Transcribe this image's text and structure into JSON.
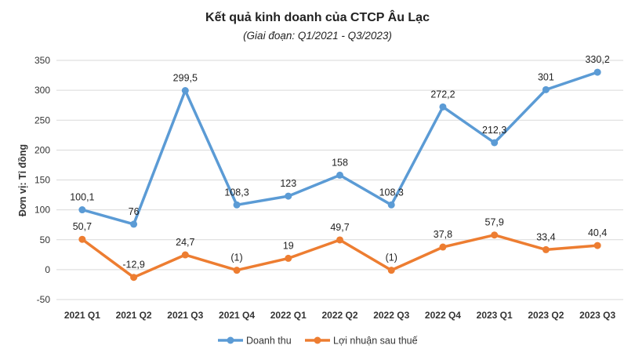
{
  "chart_data": {
    "type": "line",
    "title": "Kết quả kinh doanh của CTCP Âu Lạc",
    "subtitle": "(Giai đoạn: Q1/2021 - Q3/2023)",
    "ylabel": "Đơn vị: Tỉ đồng",
    "ylim": [
      -50,
      350
    ],
    "yticks": [
      -50,
      0,
      50,
      100,
      150,
      200,
      250,
      300,
      350
    ],
    "grid": true,
    "legend_position": "bottom",
    "categories": [
      "2021 Q1",
      "2021 Q2",
      "2021 Q3",
      "2021 Q4",
      "2022 Q1",
      "2022 Q2",
      "2022 Q3",
      "2022 Q4",
      "2023 Q1",
      "2023 Q2",
      "2023 Q3"
    ],
    "series": [
      {
        "name": "Doanh thu",
        "color": "#5b9bd5",
        "values": [
          100.1,
          76,
          299.5,
          108.3,
          123,
          158,
          108.3,
          272.2,
          212.3,
          301,
          330.2
        ],
        "labels": [
          "100,1",
          "76",
          "299,5",
          "108,3",
          "123",
          "158",
          "108,3",
          "272,2",
          "212,3",
          "301",
          "330,2"
        ]
      },
      {
        "name": "Lợi nhuận sau thuế",
        "color": "#ed7d31",
        "values": [
          50.7,
          -12.9,
          24.7,
          -1,
          19,
          49.7,
          -1,
          37.8,
          57.9,
          33.4,
          40.4
        ],
        "labels": [
          "50,7",
          "-12,9",
          "24,7",
          "(1)",
          "19",
          "49,7",
          "(1)",
          "37,8",
          "57,9",
          "33,4",
          "40,4"
        ]
      }
    ]
  }
}
